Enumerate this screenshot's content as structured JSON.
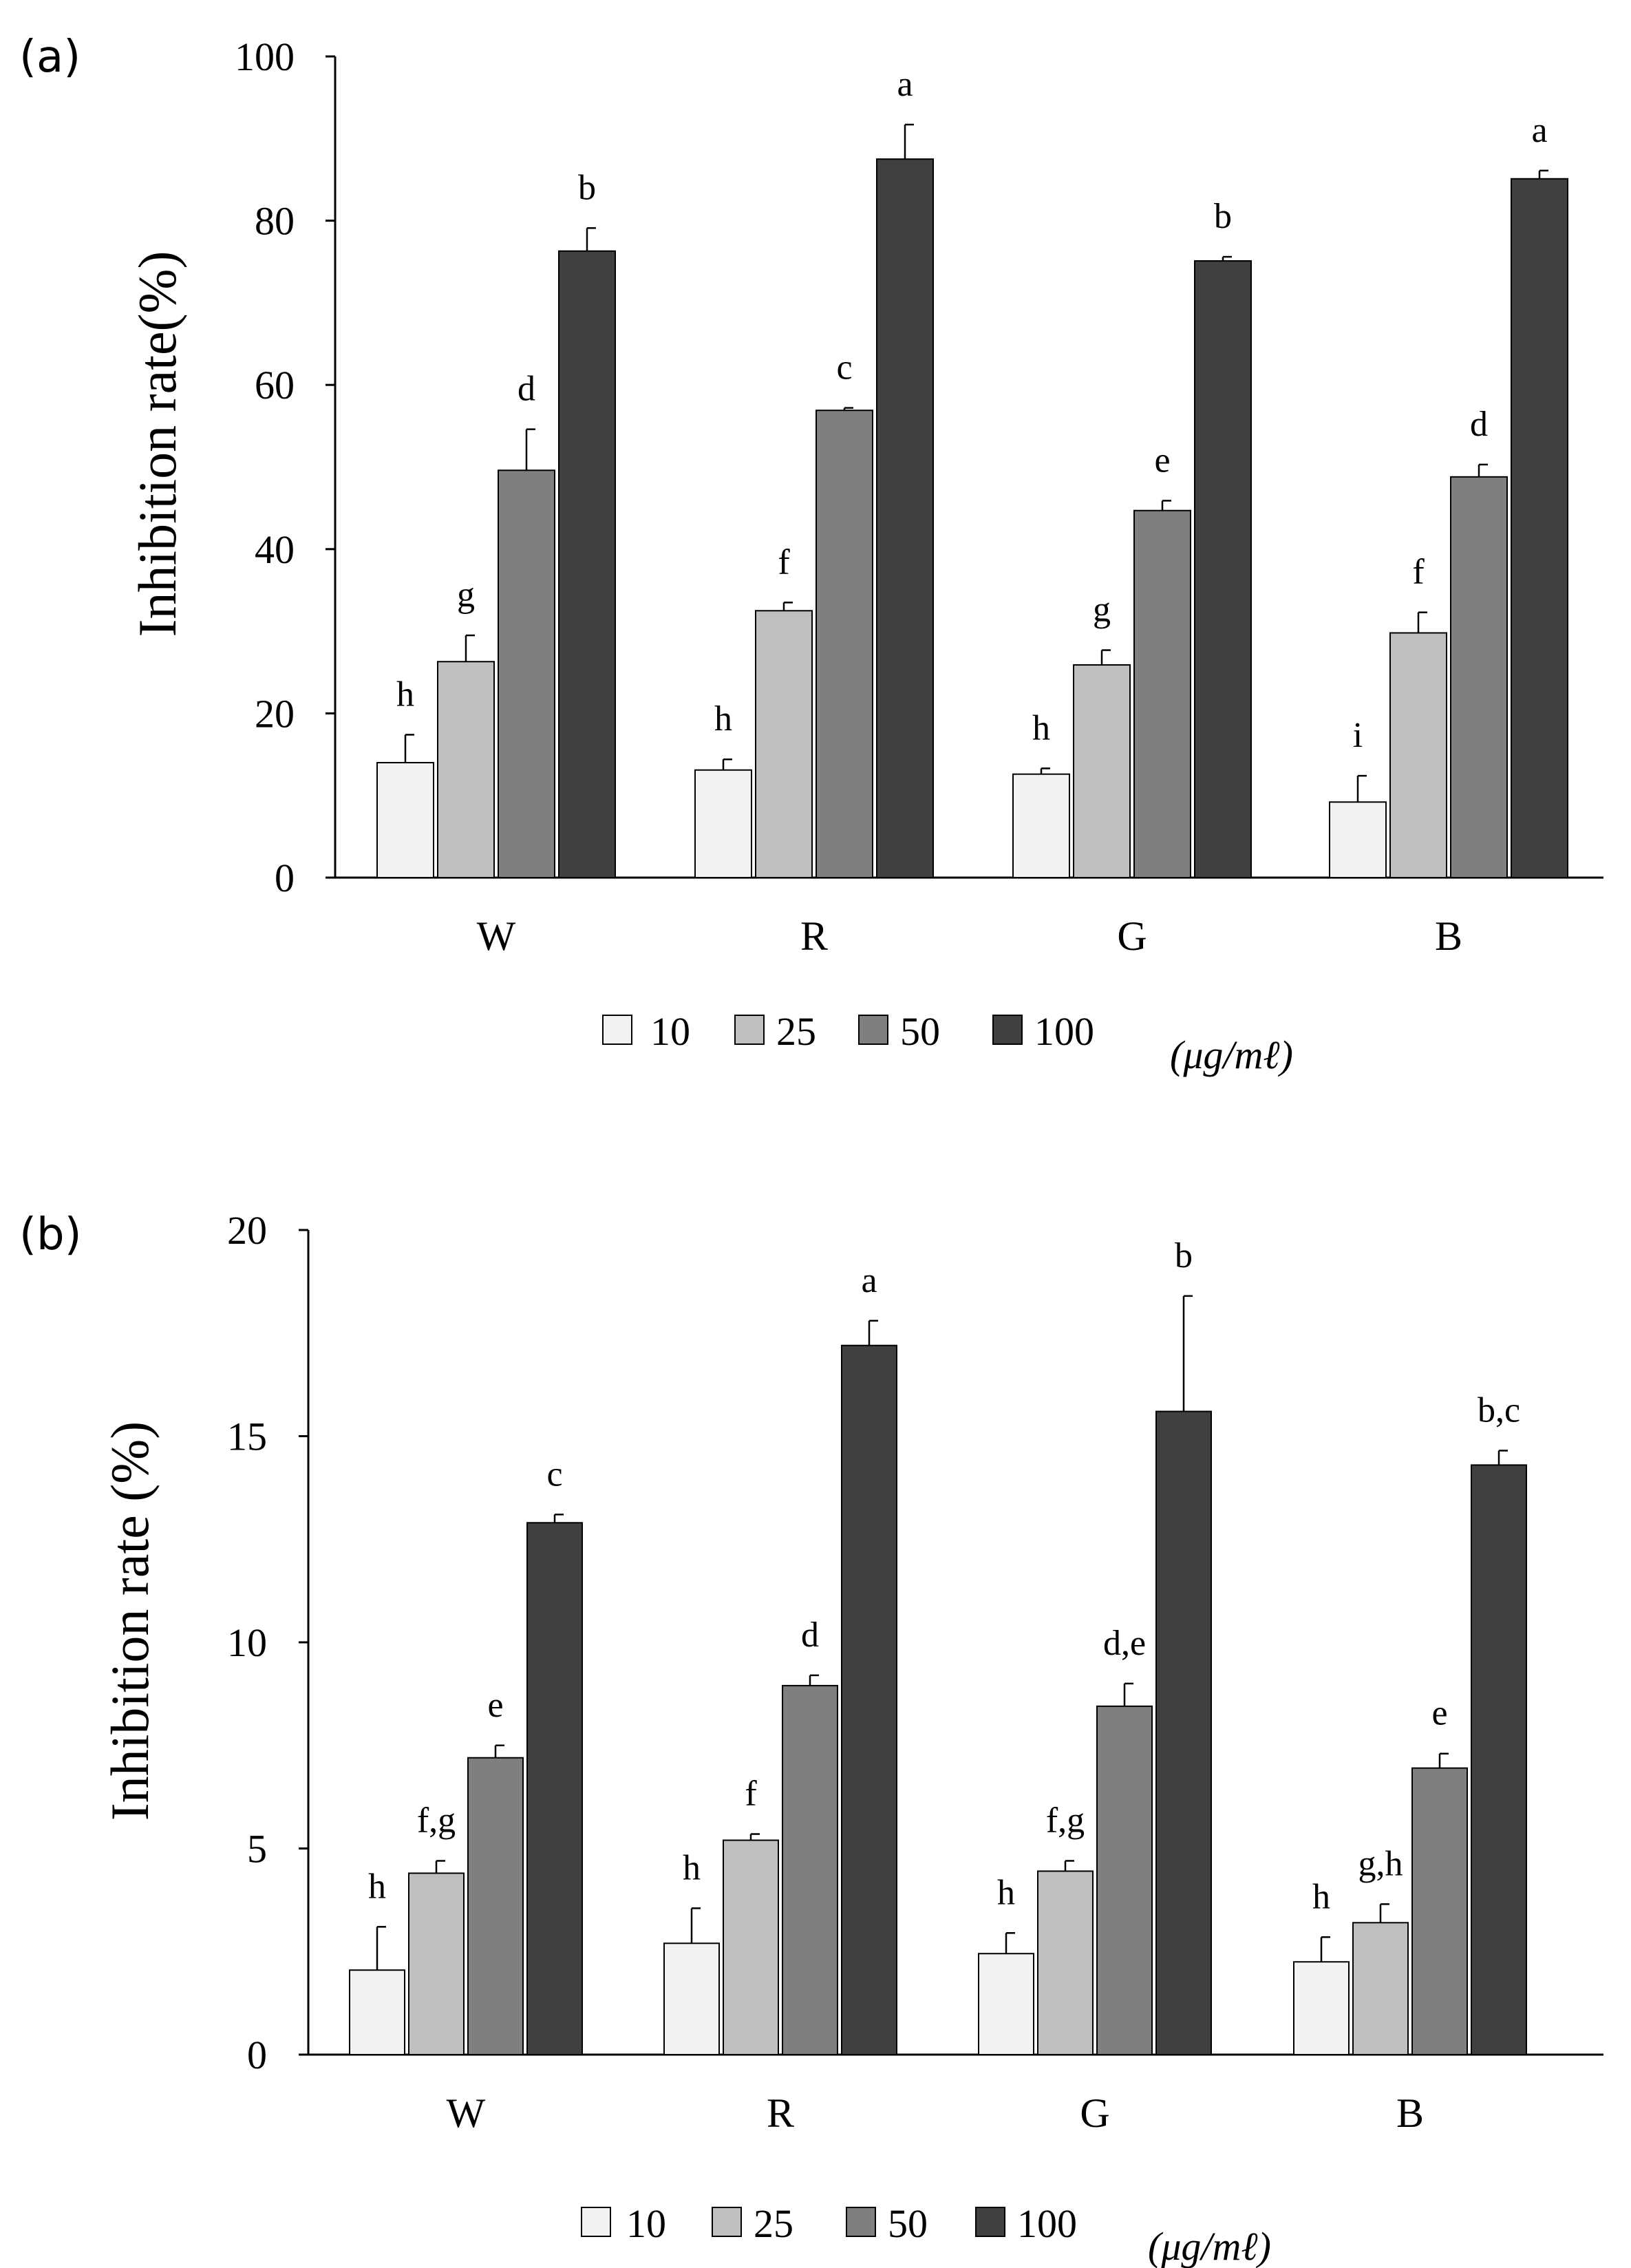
{
  "series_colors": [
    "#f2f2f2",
    "#bfbfbf",
    "#7f7f7f",
    "#404040"
  ],
  "chart_data": [
    {
      "panel": "(a)",
      "type": "bar",
      "categories": [
        "W",
        "R",
        "G",
        "B"
      ],
      "ylabel": "Inhibition rate(%)",
      "ylim": [
        0,
        100
      ],
      "yticks": [
        "0",
        "20",
        "40",
        "60",
        "80",
        "100"
      ],
      "series": [
        {
          "name": "10",
          "values": [
            14,
            13.1,
            12.6,
            9.2
          ],
          "errors": [
            3.4,
            1.3,
            0.7,
            3.2
          ],
          "labels": [
            "h",
            "h",
            "h",
            "i"
          ]
        },
        {
          "name": "25",
          "values": [
            26.3,
            32.5,
            25.9,
            29.8
          ],
          "errors": [
            3.2,
            1.0,
            1.8,
            2.5
          ],
          "labels": [
            "g",
            "f",
            "g",
            "f"
          ]
        },
        {
          "name": "50",
          "values": [
            49.6,
            56.9,
            44.7,
            48.8
          ],
          "errors": [
            5.0,
            0.3,
            1.2,
            1.5
          ],
          "labels": [
            "d",
            "c",
            "e",
            "d"
          ]
        },
        {
          "name": "100",
          "values": [
            76.3,
            87.5,
            75.1,
            85.1
          ],
          "errors": [
            2.8,
            4.2,
            0.5,
            1.0
          ],
          "labels": [
            "b",
            "a",
            "b",
            "a"
          ]
        }
      ],
      "legend_unit": "(μg/mℓ)"
    },
    {
      "panel": "(b)",
      "type": "bar",
      "categories": [
        "W",
        "R",
        "G",
        "B"
      ],
      "ylabel": "Inhibition rate (%)",
      "ylim": [
        0,
        20
      ],
      "yticks": [
        "0",
        "5",
        "10",
        "15",
        "20"
      ],
      "series": [
        {
          "name": "10",
          "values": [
            2.05,
            2.7,
            2.45,
            2.25
          ],
          "errors": [
            1.05,
            0.85,
            0.5,
            0.6
          ],
          "labels": [
            "h",
            "h",
            "h",
            "h"
          ]
        },
        {
          "name": "25",
          "values": [
            4.4,
            5.2,
            4.45,
            3.2
          ],
          "errors": [
            0.3,
            0.15,
            0.25,
            0.45
          ],
          "labels": [
            "f,g",
            "f",
            "f,g",
            "g,h"
          ]
        },
        {
          "name": "50",
          "values": [
            7.2,
            8.95,
            8.45,
            6.95
          ],
          "errors": [
            0.3,
            0.25,
            0.55,
            0.35
          ],
          "labels": [
            "e",
            "d",
            "d,e",
            "e"
          ]
        },
        {
          "name": "100",
          "values": [
            12.9,
            17.2,
            15.6,
            14.3
          ],
          "errors": [
            0.2,
            0.6,
            2.8,
            0.35
          ],
          "labels": [
            "c",
            "a",
            "b",
            "b,c"
          ]
        }
      ],
      "legend_unit": "(μg/mℓ)"
    }
  ]
}
